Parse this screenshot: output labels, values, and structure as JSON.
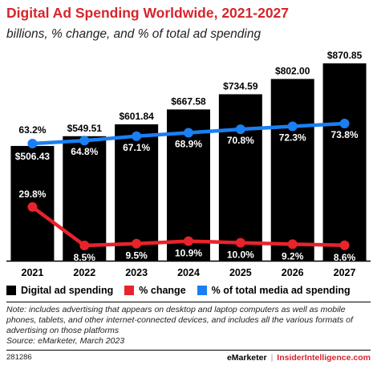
{
  "title": "Digital Ad Spending Worldwide, 2021-2027",
  "subtitle": "billions, % change, and % of total ad spending",
  "chart_data": {
    "type": "bar",
    "categories": [
      "2021",
      "2022",
      "2023",
      "2024",
      "2025",
      "2026",
      "2027"
    ],
    "series": [
      {
        "name": "Digital ad spending",
        "type": "bar",
        "values": [
          506.43,
          549.51,
          601.84,
          667.58,
          734.59,
          802.0,
          870.85
        ],
        "labels": [
          "$506.43",
          "$549.51",
          "$601.84",
          "$667.58",
          "$734.59",
          "$802.00",
          "$870.85"
        ],
        "color": "#000000"
      },
      {
        "name": "% change",
        "type": "line",
        "values": [
          29.8,
          8.5,
          9.5,
          10.9,
          10.0,
          9.2,
          8.6
        ],
        "labels": [
          "29.8%",
          "8.5%",
          "9.5%",
          "10.9%",
          "10.0%",
          "9.2%",
          "8.6%"
        ],
        "color": "#e8232b"
      },
      {
        "name": "% of total media ad spending",
        "type": "line",
        "values": [
          63.2,
          64.8,
          67.1,
          68.9,
          70.8,
          72.3,
          73.8
        ],
        "labels": [
          "63.2%",
          "64.8%",
          "67.1%",
          "68.9%",
          "70.8%",
          "72.3%",
          "73.8%"
        ],
        "color": "#1a7ff2"
      }
    ],
    "legend_position": "bottom",
    "grid": false
  },
  "note": "Note: includes advertising that appears on desktop and laptop computers as well as mobile phones, tablets, and other internet-connected devices, and includes all the various formats of advertising on those platforms",
  "source": "Source: eMarketer, March 2023",
  "footer": {
    "chart_id": "281286",
    "brand_emarketer": "eMarketer",
    "separator": "|",
    "brand_insider": "InsiderIntelligence.com"
  }
}
